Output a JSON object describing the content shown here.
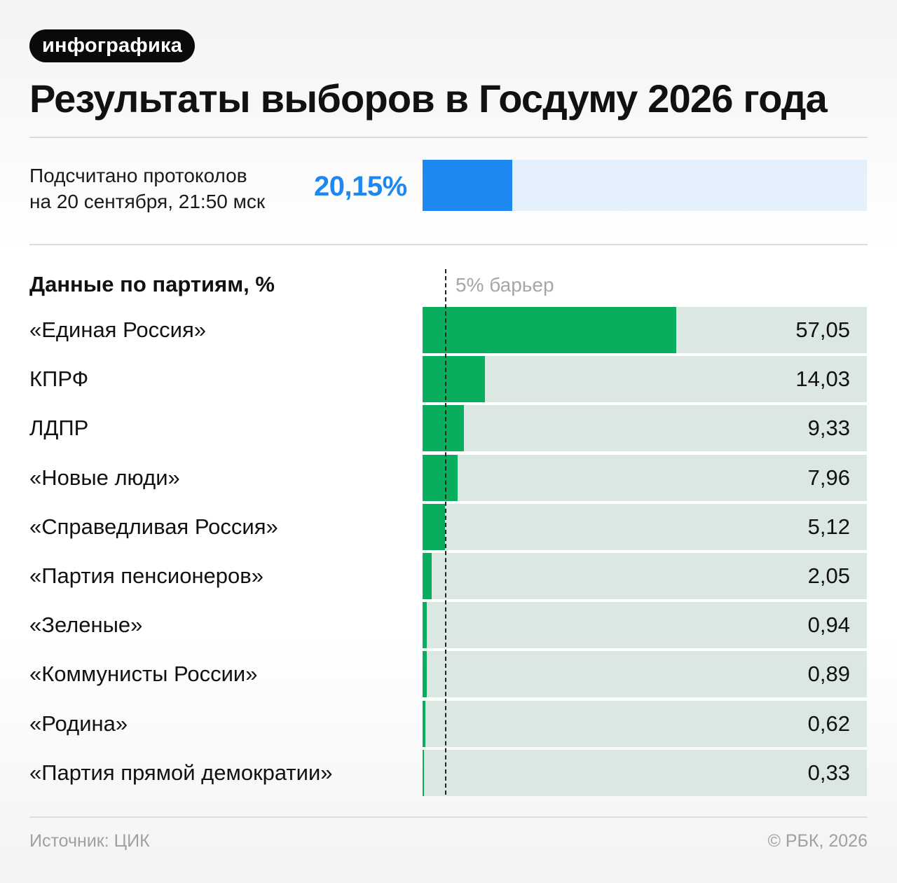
{
  "badge": "инфографика",
  "title": "Результаты выборов в Госдуму 2026 года",
  "counted": {
    "label": "Подсчитано протоколов\nна 20 сентября, 21:50 мск",
    "value_text": "20,15%",
    "value": 20.15
  },
  "parties_heading": "Данные по партиям, %",
  "barrier_label": "5% барьер",
  "chart_data": {
    "type": "bar",
    "orientation": "horizontal",
    "barrier": 5,
    "xlim": [
      0,
      100
    ],
    "categories": [
      "«Единая Россия»",
      "КПРФ",
      "ЛДПР",
      "«Новые люди»",
      "«Справедливая Россия»",
      "«Партия пенсионеров»",
      "«Зеленые»",
      "«Коммунисты России»",
      "«Родина»",
      "«Партия прямой демократии»"
    ],
    "values": [
      57.05,
      14.03,
      9.33,
      7.96,
      5.12,
      2.05,
      0.94,
      0.89,
      0.62,
      0.33
    ],
    "value_labels": [
      "57,05",
      "14,03",
      "9,33",
      "7,96",
      "5,12",
      "2,05",
      "0,94",
      "0,89",
      "0,62",
      "0,33"
    ]
  },
  "colors": {
    "accent_blue": "#1e88f0",
    "progress_track": "#e5f0fd",
    "bar_green": "#08ad5e",
    "bar_track": "#dbe8e1"
  },
  "footer": {
    "source": "Источник: ЦИК",
    "copyright": "© РБК, 2026"
  }
}
